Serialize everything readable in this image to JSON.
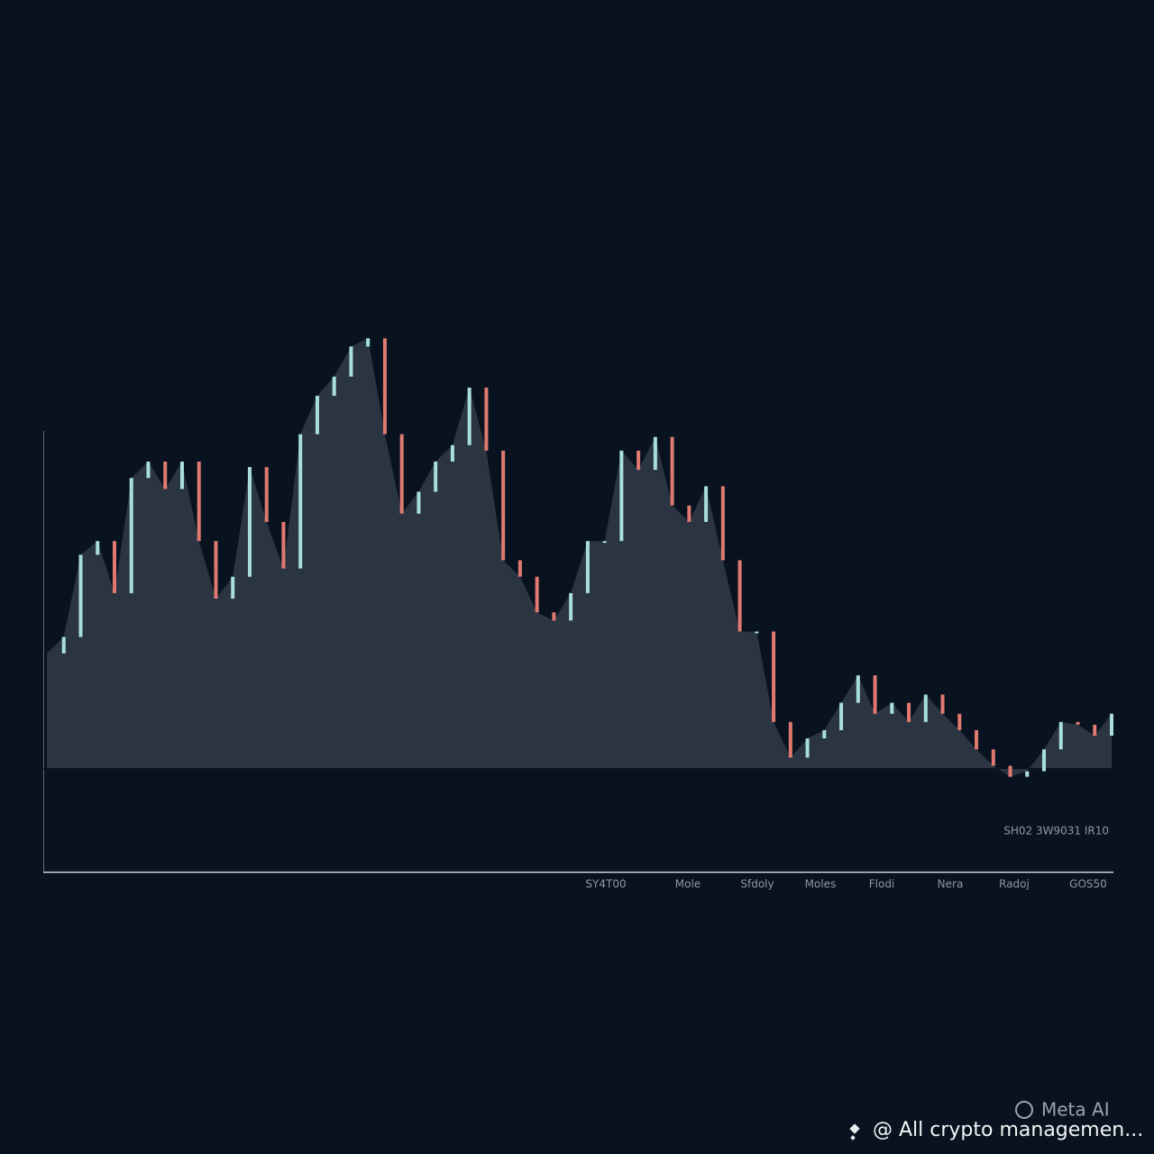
{
  "chart_data": {
    "type": "candlestick-area",
    "x": [
      0,
      1,
      2,
      3,
      4,
      5,
      6,
      7,
      8,
      9,
      10,
      11,
      12,
      13,
      14,
      15,
      16,
      17,
      18,
      19,
      20,
      21,
      22,
      23,
      24,
      25,
      26,
      27,
      28,
      29,
      30,
      31,
      32,
      33,
      34,
      35,
      36,
      37,
      38,
      39,
      40,
      41,
      42,
      43,
      44,
      45,
      46,
      47,
      48,
      49,
      50,
      51,
      52,
      53,
      54,
      55,
      56,
      57,
      58,
      59,
      60,
      61,
      62,
      63
    ],
    "xlim": [
      0,
      63
    ],
    "ylim": [
      0,
      100
    ],
    "values": [
      40,
      43,
      58,
      60.5,
      51,
      72,
      75,
      70,
      75,
      60.5,
      50,
      54,
      74,
      64,
      55.5,
      80,
      87,
      90.5,
      96,
      97.5,
      80,
      65.5,
      69.5,
      75,
      78,
      88.5,
      77,
      57,
      54,
      47.5,
      46,
      51,
      60.5,
      60.5,
      77,
      73.5,
      79.5,
      67,
      64,
      70.5,
      57,
      44,
      44,
      27.5,
      21,
      24.5,
      26,
      31,
      36,
      29,
      31,
      27.5,
      32.5,
      29,
      26,
      22.5,
      19.5,
      17.5,
      18.5,
      22.5,
      27.5,
      27,
      25,
      29
    ],
    "area_floor": 19,
    "up_color": "#a8e0d8",
    "down_color": "#e07a70",
    "area_color": "#2b3542",
    "axis_note": "SH02 3W9031 IR10",
    "x_axis_labels": [
      "SY4T00",
      "Mole",
      "Sfdoly",
      "Moles",
      "Flodi",
      "Nera",
      "Radoj",
      "GOS50"
    ]
  },
  "watermark": "Meta AI",
  "footer": "@ All crypto managemen..."
}
